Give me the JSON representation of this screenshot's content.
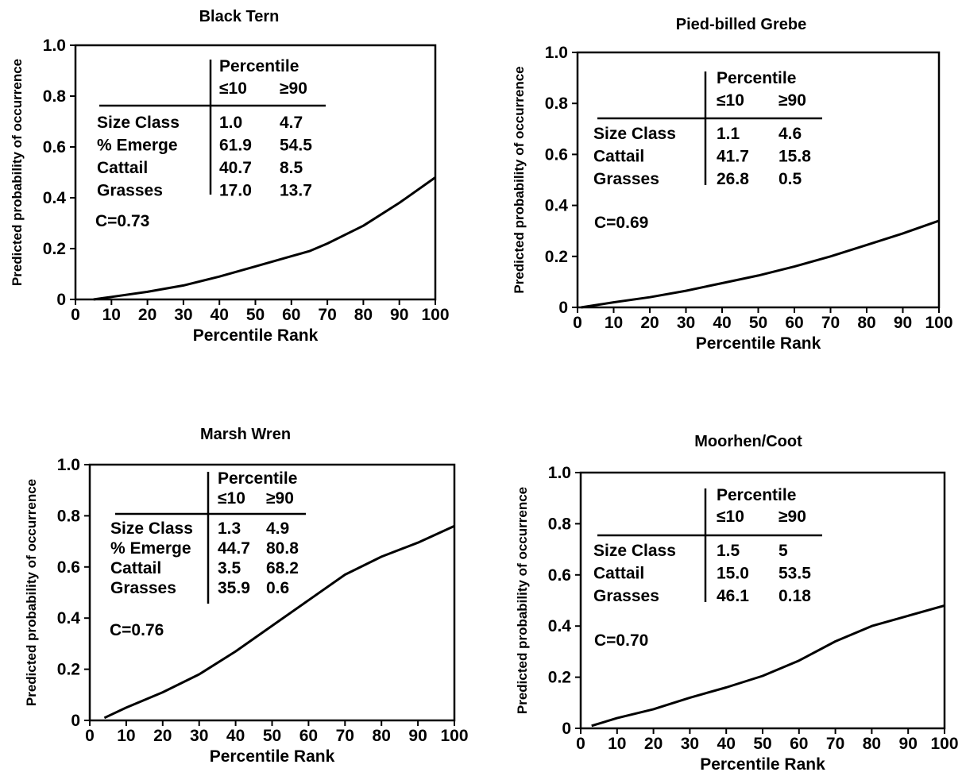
{
  "chart_data": [
    {
      "type": "line",
      "title": "Black Tern",
      "xlabel": "Percentile Rank",
      "ylabel": "Predicted probability of occurrence",
      "xlim": [
        0,
        100
      ],
      "ylim": [
        0,
        1
      ],
      "xticks": [
        "0",
        "10",
        "20",
        "30",
        "40",
        "50",
        "60",
        "70",
        "80",
        "90",
        "100"
      ],
      "yticks": [
        "0",
        "0.2",
        "0.4",
        "0.6",
        "0.8",
        "1.0"
      ],
      "series": [
        {
          "x": [
            5,
            10,
            20,
            30,
            40,
            50,
            60,
            65,
            70,
            80,
            90,
            100
          ],
          "y": [
            0.0,
            0.01,
            0.03,
            0.055,
            0.09,
            0.13,
            0.17,
            0.19,
            0.22,
            0.29,
            0.38,
            0.48
          ]
        }
      ],
      "table": {
        "header_top": "Percentile",
        "col1_header": "≤10",
        "col2_header": "≥90",
        "rows": [
          {
            "label": "Size Class",
            "v1": "1.0",
            "v2": "4.7"
          },
          {
            "label": "% Emerge",
            "v1": "61.9",
            "v2": "54.5"
          },
          {
            "label": "Cattail",
            "v1": "40.7",
            "v2": "8.5"
          },
          {
            "label": "Grasses",
            "v1": "17.0",
            "v2": "13.7"
          }
        ]
      },
      "annotation": "C=0.73"
    },
    {
      "type": "line",
      "title": "Pied-billed Grebe",
      "xlabel": "Percentile Rank",
      "ylabel": "Predicted probability of occurrence",
      "xlim": [
        0,
        100
      ],
      "ylim": [
        0,
        1
      ],
      "xticks": [
        "0",
        "10",
        "20",
        "30",
        "40",
        "50",
        "60",
        "70",
        "80",
        "90",
        "100"
      ],
      "yticks": [
        "0",
        "0.2",
        "0.4",
        "0.6",
        "0.8",
        "1.0"
      ],
      "series": [
        {
          "x": [
            1,
            10,
            20,
            30,
            40,
            50,
            60,
            70,
            80,
            90,
            100
          ],
          "y": [
            0.0,
            0.02,
            0.04,
            0.065,
            0.095,
            0.125,
            0.16,
            0.2,
            0.245,
            0.29,
            0.34
          ]
        }
      ],
      "table": {
        "header_top": "Percentile",
        "col1_header": "≤10",
        "col2_header": "≥90",
        "rows": [
          {
            "label": "Size Class",
            "v1": "1.1",
            "v2": "4.6"
          },
          {
            "label": "Cattail",
            "v1": "41.7",
            "v2": "15.8"
          },
          {
            "label": "Grasses",
            "v1": "26.8",
            "v2": "0.5"
          }
        ]
      },
      "annotation": "C=0.69"
    },
    {
      "type": "line",
      "title": "Marsh Wren",
      "xlabel": "Percentile Rank",
      "ylabel": "Predicted probability of occurrence",
      "xlim": [
        0,
        100
      ],
      "ylim": [
        0,
        1
      ],
      "xticks": [
        "0",
        "10",
        "20",
        "30",
        "40",
        "50",
        "60",
        "70",
        "80",
        "90",
        "100"
      ],
      "yticks": [
        "0",
        "0.2",
        "0.4",
        "0.6",
        "0.8",
        "1.0"
      ],
      "series": [
        {
          "x": [
            4,
            10,
            20,
            30,
            40,
            50,
            60,
            70,
            80,
            90,
            100
          ],
          "y": [
            0.01,
            0.05,
            0.11,
            0.18,
            0.27,
            0.37,
            0.47,
            0.57,
            0.64,
            0.695,
            0.76
          ]
        }
      ],
      "table": {
        "header_top": "Percentile",
        "col1_header": "≤10",
        "col2_header": "≥90",
        "rows": [
          {
            "label": "Size Class",
            "v1": "1.3",
            "v2": "4.9"
          },
          {
            "label": "% Emerge",
            "v1": "44.7",
            "v2": "80.8"
          },
          {
            "label": "Cattail",
            "v1": "3.5",
            "v2": "68.2"
          },
          {
            "label": "Grasses",
            "v1": "35.9",
            "v2": "0.6"
          }
        ]
      },
      "annotation": "C=0.76"
    },
    {
      "type": "line",
      "title": "Moorhen/Coot",
      "xlabel": "Percentile Rank",
      "ylabel": "Predicted probability of occurrence",
      "xlim": [
        0,
        100
      ],
      "ylim": [
        0,
        1
      ],
      "xticks": [
        "0",
        "10",
        "20",
        "30",
        "40",
        "50",
        "60",
        "70",
        "80",
        "90",
        "100"
      ],
      "yticks": [
        "0",
        "0.2",
        "0.4",
        "0.6",
        "0.8",
        "1.0"
      ],
      "series": [
        {
          "x": [
            3,
            10,
            20,
            30,
            40,
            50,
            60,
            70,
            80,
            90,
            100
          ],
          "y": [
            0.01,
            0.04,
            0.075,
            0.12,
            0.16,
            0.205,
            0.265,
            0.34,
            0.4,
            0.44,
            0.48
          ]
        }
      ],
      "table": {
        "header_top": "Percentile",
        "col1_header": "≤10",
        "col2_header": "≥90",
        "rows": [
          {
            "label": "Size Class",
            "v1": "1.5",
            "v2": "5"
          },
          {
            "label": "Cattail",
            "v1": "15.0",
            "v2": "53.5"
          },
          {
            "label": "Grasses",
            "v1": "46.1",
            "v2": "0.18"
          }
        ]
      },
      "annotation": "C=0.70"
    }
  ]
}
